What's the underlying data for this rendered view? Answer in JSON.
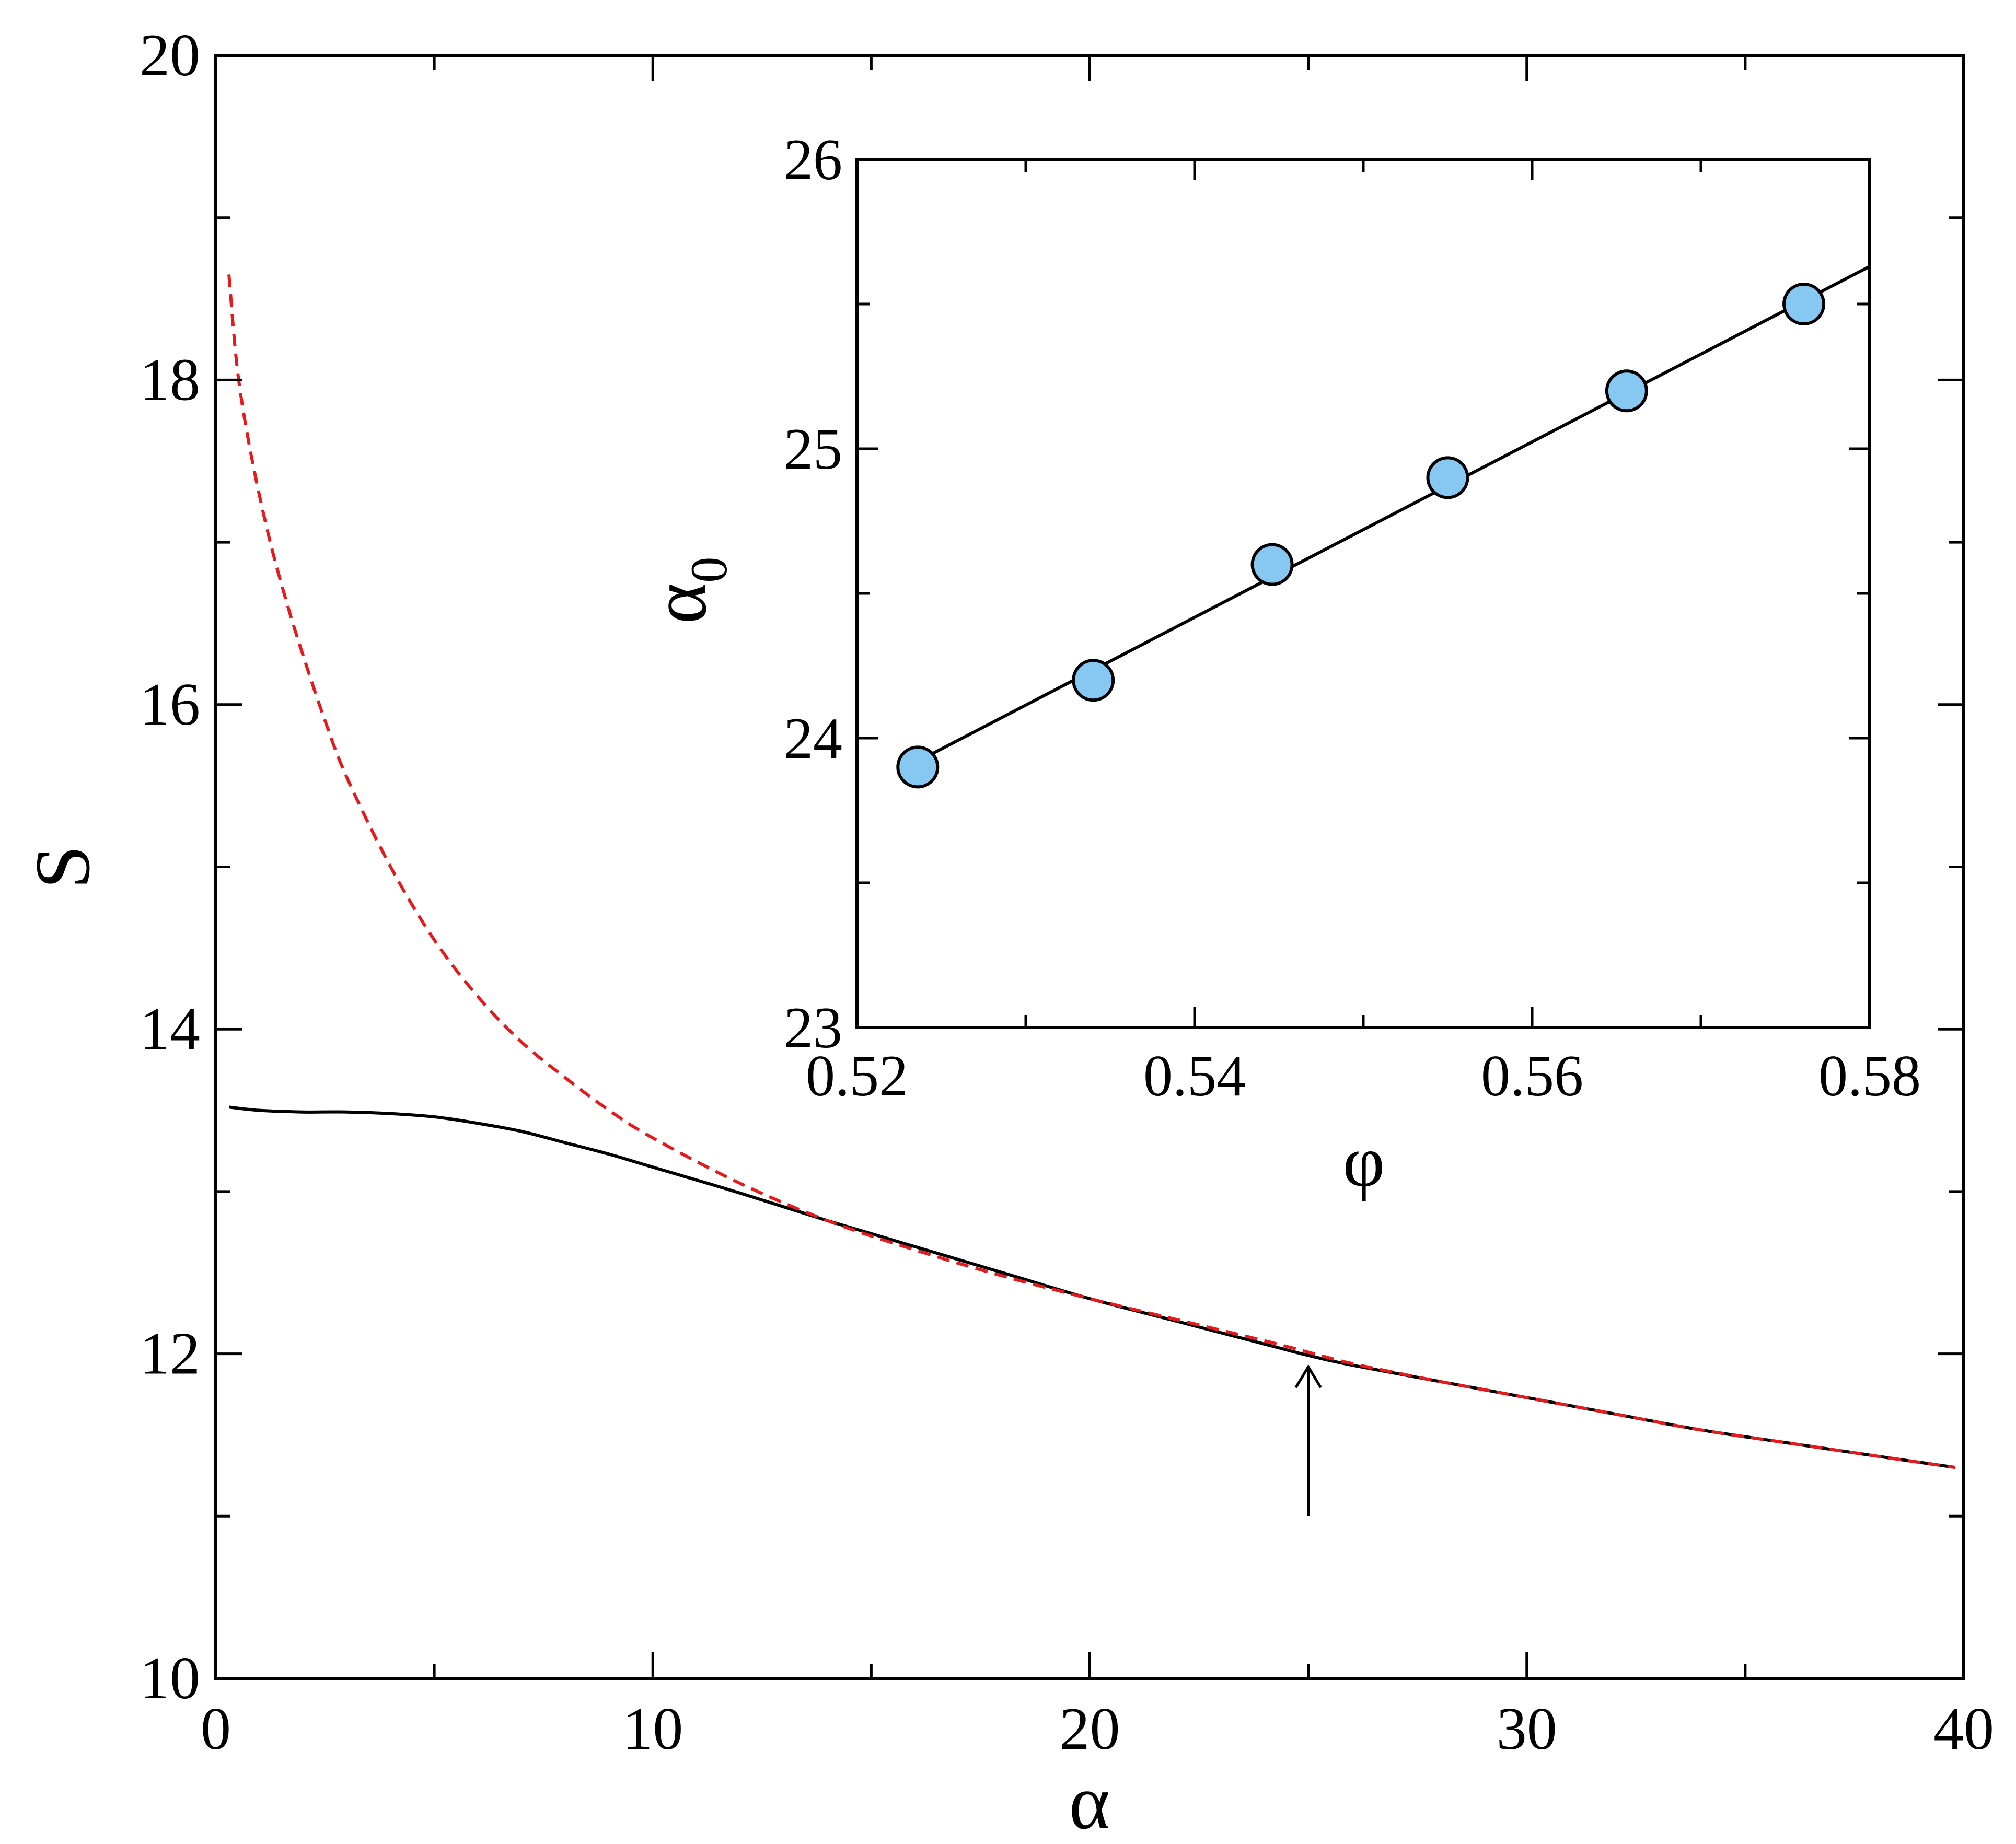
{
  "chart_data": [
    {
      "type": "line",
      "role": "main",
      "xlabel": "α",
      "ylabel": "S",
      "xlim": [
        0,
        40
      ],
      "ylim": [
        10,
        20
      ],
      "x_major_ticks": [
        0,
        10,
        20,
        30,
        40
      ],
      "x_minor_ticks": [
        5,
        15,
        25,
        35
      ],
      "y_major_ticks": [
        10,
        12,
        14,
        16,
        18,
        20
      ],
      "y_minor_ticks": [
        11,
        13,
        15,
        17,
        19
      ],
      "x_tick_labels": [
        "0",
        "10",
        "20",
        "30",
        "40"
      ],
      "y_tick_labels": [
        "10",
        "12",
        "14",
        "16",
        "18",
        "20"
      ],
      "grid": false,
      "series": [
        {
          "style": "solid",
          "color": "#000000",
          "x": [
            0.3,
            1,
            2,
            3,
            4,
            5,
            6,
            7,
            8,
            9,
            10,
            12,
            14,
            16,
            18,
            20,
            22,
            24,
            25,
            26,
            28,
            30,
            32,
            34,
            36,
            38,
            39.8
          ],
          "y": [
            13.52,
            13.5,
            13.49,
            13.49,
            13.48,
            13.46,
            13.42,
            13.37,
            13.3,
            13.23,
            13.15,
            12.99,
            12.82,
            12.66,
            12.5,
            12.34,
            12.2,
            12.06,
            11.99,
            11.93,
            11.83,
            11.73,
            11.63,
            11.53,
            11.45,
            11.37,
            11.3
          ]
        },
        {
          "style": "dashed",
          "color": "#e8191c",
          "x": [
            0.3,
            0.5,
            0.8,
            1.2,
            1.6,
            2,
            2.5,
            3,
            4,
            5,
            6,
            7,
            8,
            9,
            10,
            12,
            14,
            16,
            18,
            20,
            22,
            24,
            25,
            26,
            28,
            30,
            32,
            34,
            36,
            38,
            39.8
          ],
          "y": [
            18.65,
            18.05,
            17.55,
            17.05,
            16.65,
            16.3,
            15.9,
            15.55,
            15.0,
            14.55,
            14.2,
            13.92,
            13.7,
            13.5,
            13.33,
            13.05,
            12.82,
            12.64,
            12.48,
            12.34,
            12.21,
            12.08,
            12.01,
            11.94,
            11.83,
            11.73,
            11.63,
            11.53,
            11.45,
            11.37,
            11.3
          ]
        }
      ],
      "annotations": [
        {
          "type": "arrow",
          "x": 25,
          "y_from": 11.0,
          "y_to": 11.92
        }
      ]
    },
    {
      "type": "scatter",
      "role": "inset",
      "xlabel": "φ",
      "ylabel": "α",
      "ylabel_subscript": "0",
      "xlim": [
        0.52,
        0.58
      ],
      "ylim": [
        23,
        26
      ],
      "x_major_ticks": [
        0.52,
        0.54,
        0.56,
        0.58
      ],
      "x_minor_ticks": [
        0.53,
        0.55,
        0.57
      ],
      "y_major_ticks": [
        23,
        24,
        25,
        26
      ],
      "y_minor_ticks": [
        23.5,
        24.5,
        25.5
      ],
      "x_tick_labels": [
        "0.52",
        "0.54",
        "0.56",
        "0.58"
      ],
      "y_tick_labels": [
        "23",
        "24",
        "25",
        "26"
      ],
      "grid": false,
      "points": {
        "marker": "circle",
        "fill": "#87c8f2",
        "stroke": "#000000",
        "x": [
          0.5236,
          0.534,
          0.5446,
          0.555,
          0.5656,
          0.5761
        ],
        "y": [
          23.9,
          24.2,
          24.6,
          24.9,
          25.2,
          25.5
        ]
      },
      "fit_line": {
        "color": "#000000",
        "x": [
          0.5236,
          0.58
        ],
        "y": [
          23.92,
          25.63
        ]
      }
    }
  ]
}
